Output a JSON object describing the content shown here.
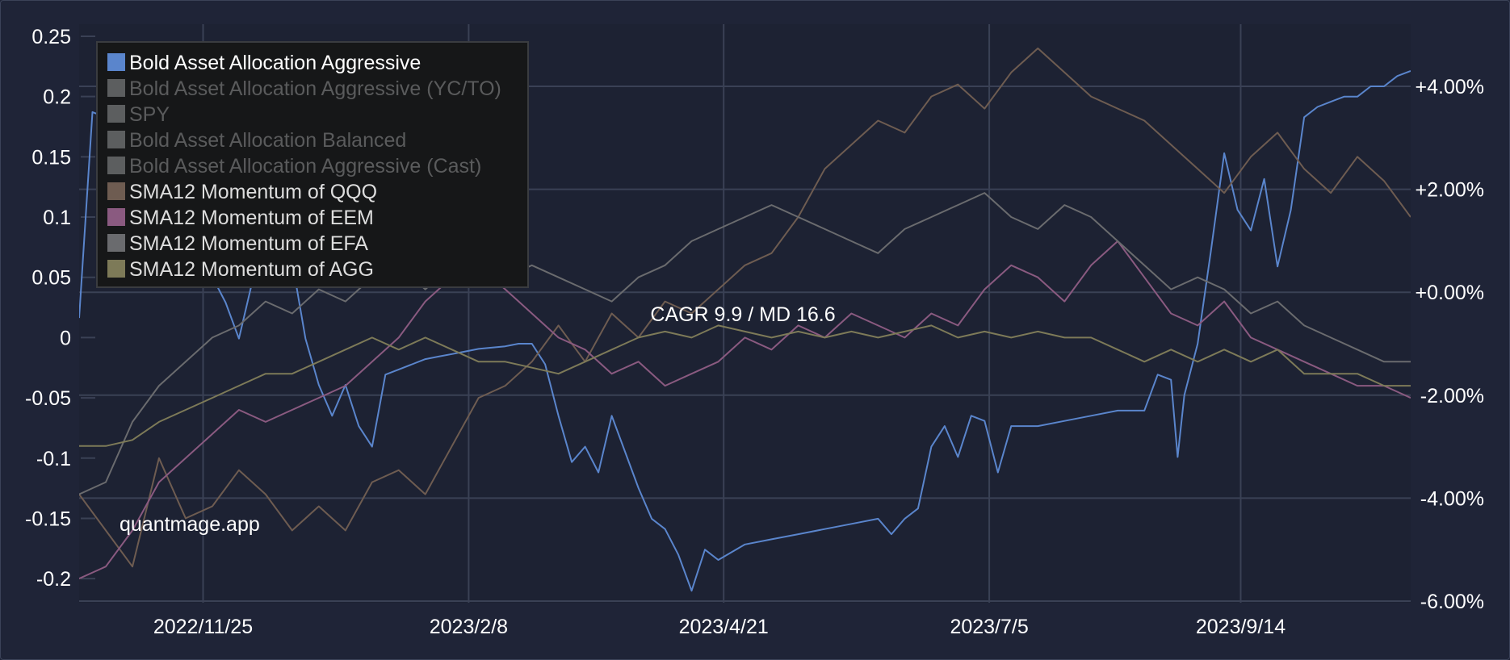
{
  "chart_data": {
    "type": "line",
    "annotation": "CAGR 9.9 / MD 16.6",
    "watermark": "quantmage.app",
    "x_tick_labels": [
      "2022/11/25",
      "2023/2/8",
      "2023/4/21",
      "2023/7/5",
      "2023/9/14"
    ],
    "x_range": [
      "2022/10/21",
      "2023/11/1"
    ],
    "y_left": {
      "ticks": [
        0.25,
        0.2,
        0.15,
        0.1,
        0.05,
        0,
        -0.05,
        -0.1,
        -0.15,
        -0.2
      ],
      "tick_labels": [
        "0.25",
        "0.2",
        "0.15",
        "0.1",
        "0.05",
        "0",
        "-0.05",
        "-0.1",
        "-0.15",
        "-0.2"
      ],
      "range": [
        -0.22,
        0.26
      ]
    },
    "y_right": {
      "ticks": [
        4,
        2,
        0,
        -2,
        -4,
        -6
      ],
      "tick_labels": [
        "+4.00%",
        "+2.00%",
        "+0.00%",
        "-2.00%",
        "-4.00%",
        "-6.00%"
      ],
      "range": [
        -6,
        4
      ]
    },
    "grid": true,
    "legend_position": "top-left",
    "series": [
      {
        "name": "Bold Asset Allocation Aggressive",
        "color": "#5a85cc",
        "visible": true,
        "axis": "right",
        "points": [
          [
            0,
            -0.5
          ],
          [
            0.01,
            3.5
          ],
          [
            0.02,
            3.4
          ],
          [
            0.04,
            2.0
          ],
          [
            0.07,
            1.4
          ],
          [
            0.09,
            0.9
          ],
          [
            0.1,
            0.3
          ],
          [
            0.11,
            -0.2
          ],
          [
            0.12,
            -0.9
          ],
          [
            0.13,
            0.2
          ],
          [
            0.14,
            0.9
          ],
          [
            0.15,
            1.4
          ],
          [
            0.16,
            0.6
          ],
          [
            0.17,
            -0.9
          ],
          [
            0.18,
            -1.8
          ],
          [
            0.19,
            -2.4
          ],
          [
            0.2,
            -1.8
          ],
          [
            0.21,
            -2.6
          ],
          [
            0.22,
            -3.0
          ],
          [
            0.23,
            -1.6
          ],
          [
            0.24,
            -1.5
          ],
          [
            0.25,
            -1.4
          ],
          [
            0.26,
            -1.3
          ],
          [
            0.27,
            -1.25
          ],
          [
            0.28,
            -1.2
          ],
          [
            0.29,
            -1.15
          ],
          [
            0.3,
            -1.1
          ],
          [
            0.32,
            -1.05
          ],
          [
            0.33,
            -1.0
          ],
          [
            0.34,
            -1.0
          ],
          [
            0.35,
            -1.4
          ],
          [
            0.36,
            -2.4
          ],
          [
            0.37,
            -3.3
          ],
          [
            0.38,
            -3.0
          ],
          [
            0.39,
            -3.5
          ],
          [
            0.4,
            -2.4
          ],
          [
            0.41,
            -3.1
          ],
          [
            0.42,
            -3.8
          ],
          [
            0.43,
            -4.4
          ],
          [
            0.44,
            -4.6
          ],
          [
            0.45,
            -5.1
          ],
          [
            0.46,
            -5.8
          ],
          [
            0.47,
            -5.0
          ],
          [
            0.48,
            -5.2
          ],
          [
            0.5,
            -4.9
          ],
          [
            0.52,
            -4.8
          ],
          [
            0.54,
            -4.7
          ],
          [
            0.56,
            -4.6
          ],
          [
            0.58,
            -4.5
          ],
          [
            0.6,
            -4.4
          ],
          [
            0.61,
            -4.7
          ],
          [
            0.62,
            -4.4
          ],
          [
            0.63,
            -4.2
          ],
          [
            0.64,
            -3.0
          ],
          [
            0.65,
            -2.6
          ],
          [
            0.66,
            -3.2
          ],
          [
            0.67,
            -2.4
          ],
          [
            0.68,
            -2.5
          ],
          [
            0.69,
            -3.5
          ],
          [
            0.7,
            -2.6
          ],
          [
            0.72,
            -2.6
          ],
          [
            0.74,
            -2.5
          ],
          [
            0.76,
            -2.4
          ],
          [
            0.78,
            -2.3
          ],
          [
            0.8,
            -2.3
          ],
          [
            0.81,
            -1.6
          ],
          [
            0.82,
            -1.7
          ],
          [
            0.825,
            -3.2
          ],
          [
            0.83,
            -2.0
          ],
          [
            0.84,
            -1.0
          ],
          [
            0.85,
            0.8
          ],
          [
            0.86,
            2.7
          ],
          [
            0.87,
            1.6
          ],
          [
            0.88,
            1.2
          ],
          [
            0.89,
            2.2
          ],
          [
            0.9,
            0.5
          ],
          [
            0.91,
            1.6
          ],
          [
            0.92,
            3.4
          ],
          [
            0.93,
            3.6
          ],
          [
            0.94,
            3.7
          ],
          [
            0.95,
            3.8
          ],
          [
            0.96,
            3.8
          ],
          [
            0.97,
            4.0
          ],
          [
            0.98,
            4.0
          ],
          [
            0.99,
            4.2
          ],
          [
            1.0,
            4.3
          ]
        ]
      },
      {
        "name": "Bold Asset Allocation Aggressive (YC/TO)",
        "color": "#5c5e5f",
        "visible": false,
        "axis": "right",
        "points": []
      },
      {
        "name": "SPY",
        "color": "#5c5e5f",
        "visible": false,
        "axis": "right",
        "points": []
      },
      {
        "name": "Bold Asset Allocation Balanced",
        "color": "#5c5e5f",
        "visible": false,
        "axis": "right",
        "points": []
      },
      {
        "name": "Bold Asset Allocation Aggressive (Cast)",
        "color": "#5c5e5f",
        "visible": false,
        "axis": "right",
        "points": []
      },
      {
        "name": "SMA12 Momentum of QQQ",
        "color": "#6e5c51",
        "visible": true,
        "axis": "left",
        "points": [
          [
            0,
            -0.13
          ],
          [
            0.02,
            -0.16
          ],
          [
            0.04,
            -0.19
          ],
          [
            0.06,
            -0.1
          ],
          [
            0.08,
            -0.15
          ],
          [
            0.1,
            -0.14
          ],
          [
            0.12,
            -0.11
          ],
          [
            0.14,
            -0.13
          ],
          [
            0.16,
            -0.16
          ],
          [
            0.18,
            -0.14
          ],
          [
            0.2,
            -0.16
          ],
          [
            0.22,
            -0.12
          ],
          [
            0.24,
            -0.11
          ],
          [
            0.26,
            -0.13
          ],
          [
            0.28,
            -0.09
          ],
          [
            0.3,
            -0.05
          ],
          [
            0.32,
            -0.04
          ],
          [
            0.34,
            -0.02
          ],
          [
            0.36,
            0.01
          ],
          [
            0.38,
            -0.02
          ],
          [
            0.4,
            0.02
          ],
          [
            0.42,
            0.0
          ],
          [
            0.44,
            0.03
          ],
          [
            0.46,
            0.02
          ],
          [
            0.48,
            0.04
          ],
          [
            0.5,
            0.06
          ],
          [
            0.52,
            0.07
          ],
          [
            0.54,
            0.1
          ],
          [
            0.56,
            0.14
          ],
          [
            0.58,
            0.16
          ],
          [
            0.6,
            0.18
          ],
          [
            0.62,
            0.17
          ],
          [
            0.64,
            0.2
          ],
          [
            0.66,
            0.21
          ],
          [
            0.68,
            0.19
          ],
          [
            0.7,
            0.22
          ],
          [
            0.72,
            0.24
          ],
          [
            0.74,
            0.22
          ],
          [
            0.76,
            0.2
          ],
          [
            0.78,
            0.19
          ],
          [
            0.8,
            0.18
          ],
          [
            0.82,
            0.16
          ],
          [
            0.84,
            0.14
          ],
          [
            0.86,
            0.12
          ],
          [
            0.88,
            0.15
          ],
          [
            0.9,
            0.17
          ],
          [
            0.92,
            0.14
          ],
          [
            0.94,
            0.12
          ],
          [
            0.96,
            0.15
          ],
          [
            0.98,
            0.13
          ],
          [
            1.0,
            0.1
          ]
        ]
      },
      {
        "name": "SMA12 Momentum of EEM",
        "color": "#8a5a80",
        "visible": true,
        "axis": "left",
        "points": [
          [
            0,
            -0.2
          ],
          [
            0.02,
            -0.19
          ],
          [
            0.04,
            -0.16
          ],
          [
            0.06,
            -0.12
          ],
          [
            0.08,
            -0.1
          ],
          [
            0.1,
            -0.08
          ],
          [
            0.12,
            -0.06
          ],
          [
            0.14,
            -0.07
          ],
          [
            0.16,
            -0.06
          ],
          [
            0.18,
            -0.05
          ],
          [
            0.2,
            -0.04
          ],
          [
            0.22,
            -0.02
          ],
          [
            0.24,
            0.0
          ],
          [
            0.26,
            0.03
          ],
          [
            0.28,
            0.05
          ],
          [
            0.3,
            0.06
          ],
          [
            0.32,
            0.04
          ],
          [
            0.34,
            0.02
          ],
          [
            0.36,
            0.0
          ],
          [
            0.38,
            -0.01
          ],
          [
            0.4,
            -0.03
          ],
          [
            0.42,
            -0.02
          ],
          [
            0.44,
            -0.04
          ],
          [
            0.46,
            -0.03
          ],
          [
            0.48,
            -0.02
          ],
          [
            0.5,
            0.0
          ],
          [
            0.52,
            -0.01
          ],
          [
            0.54,
            0.01
          ],
          [
            0.56,
            0.0
          ],
          [
            0.58,
            0.02
          ],
          [
            0.6,
            0.01
          ],
          [
            0.62,
            0.0
          ],
          [
            0.64,
            0.02
          ],
          [
            0.66,
            0.01
          ],
          [
            0.68,
            0.04
          ],
          [
            0.7,
            0.06
          ],
          [
            0.72,
            0.05
          ],
          [
            0.74,
            0.03
          ],
          [
            0.76,
            0.06
          ],
          [
            0.78,
            0.08
          ],
          [
            0.8,
            0.05
          ],
          [
            0.82,
            0.02
          ],
          [
            0.84,
            0.01
          ],
          [
            0.86,
            0.03
          ],
          [
            0.88,
            0.0
          ],
          [
            0.9,
            -0.01
          ],
          [
            0.92,
            -0.02
          ],
          [
            0.94,
            -0.03
          ],
          [
            0.96,
            -0.04
          ],
          [
            0.98,
            -0.04
          ],
          [
            1.0,
            -0.05
          ]
        ]
      },
      {
        "name": "SMA12 Momentum of EFA",
        "color": "#6a6b6e",
        "visible": true,
        "axis": "left",
        "points": [
          [
            0,
            -0.13
          ],
          [
            0.02,
            -0.12
          ],
          [
            0.04,
            -0.07
          ],
          [
            0.06,
            -0.04
          ],
          [
            0.08,
            -0.02
          ],
          [
            0.1,
            0.0
          ],
          [
            0.12,
            0.01
          ],
          [
            0.14,
            0.03
          ],
          [
            0.16,
            0.02
          ],
          [
            0.18,
            0.04
          ],
          [
            0.2,
            0.03
          ],
          [
            0.22,
            0.05
          ],
          [
            0.24,
            0.06
          ],
          [
            0.26,
            0.04
          ],
          [
            0.28,
            0.06
          ],
          [
            0.3,
            0.07
          ],
          [
            0.32,
            0.05
          ],
          [
            0.34,
            0.06
          ],
          [
            0.36,
            0.05
          ],
          [
            0.38,
            0.04
          ],
          [
            0.4,
            0.03
          ],
          [
            0.42,
            0.05
          ],
          [
            0.44,
            0.06
          ],
          [
            0.46,
            0.08
          ],
          [
            0.48,
            0.09
          ],
          [
            0.5,
            0.1
          ],
          [
            0.52,
            0.11
          ],
          [
            0.54,
            0.1
          ],
          [
            0.56,
            0.09
          ],
          [
            0.58,
            0.08
          ],
          [
            0.6,
            0.07
          ],
          [
            0.62,
            0.09
          ],
          [
            0.64,
            0.1
          ],
          [
            0.66,
            0.11
          ],
          [
            0.68,
            0.12
          ],
          [
            0.7,
            0.1
          ],
          [
            0.72,
            0.09
          ],
          [
            0.74,
            0.11
          ],
          [
            0.76,
            0.1
          ],
          [
            0.78,
            0.08
          ],
          [
            0.8,
            0.06
          ],
          [
            0.82,
            0.04
          ],
          [
            0.84,
            0.05
          ],
          [
            0.86,
            0.04
          ],
          [
            0.88,
            0.02
          ],
          [
            0.9,
            0.03
          ],
          [
            0.92,
            0.01
          ],
          [
            0.94,
            0.0
          ],
          [
            0.96,
            -0.01
          ],
          [
            0.98,
            -0.02
          ],
          [
            1.0,
            -0.02
          ]
        ]
      },
      {
        "name": "SMA12 Momentum of AGG",
        "color": "#7d7a58",
        "visible": true,
        "axis": "left",
        "points": [
          [
            0,
            -0.09
          ],
          [
            0.02,
            -0.09
          ],
          [
            0.04,
            -0.085
          ],
          [
            0.06,
            -0.07
          ],
          [
            0.08,
            -0.06
          ],
          [
            0.1,
            -0.05
          ],
          [
            0.12,
            -0.04
          ],
          [
            0.14,
            -0.03
          ],
          [
            0.16,
            -0.03
          ],
          [
            0.18,
            -0.02
          ],
          [
            0.2,
            -0.01
          ],
          [
            0.22,
            0.0
          ],
          [
            0.24,
            -0.01
          ],
          [
            0.26,
            0.0
          ],
          [
            0.28,
            -0.01
          ],
          [
            0.3,
            -0.02
          ],
          [
            0.32,
            -0.02
          ],
          [
            0.34,
            -0.025
          ],
          [
            0.36,
            -0.03
          ],
          [
            0.38,
            -0.02
          ],
          [
            0.4,
            -0.01
          ],
          [
            0.42,
            0.0
          ],
          [
            0.44,
            0.005
          ],
          [
            0.46,
            0.0
          ],
          [
            0.48,
            0.01
          ],
          [
            0.5,
            0.005
          ],
          [
            0.52,
            0.0
          ],
          [
            0.54,
            0.005
          ],
          [
            0.56,
            0.0
          ],
          [
            0.58,
            0.005
          ],
          [
            0.6,
            0.0
          ],
          [
            0.62,
            0.005
          ],
          [
            0.64,
            0.01
          ],
          [
            0.66,
            0.0
          ],
          [
            0.68,
            0.005
          ],
          [
            0.7,
            0.0
          ],
          [
            0.72,
            0.005
          ],
          [
            0.74,
            0.0
          ],
          [
            0.76,
            0.0
          ],
          [
            0.78,
            -0.01
          ],
          [
            0.8,
            -0.02
          ],
          [
            0.82,
            -0.01
          ],
          [
            0.84,
            -0.02
          ],
          [
            0.86,
            -0.01
          ],
          [
            0.88,
            -0.02
          ],
          [
            0.9,
            -0.01
          ],
          [
            0.92,
            -0.03
          ],
          [
            0.94,
            -0.03
          ],
          [
            0.96,
            -0.03
          ],
          [
            0.98,
            -0.04
          ],
          [
            1.0,
            -0.04
          ]
        ]
      }
    ]
  }
}
